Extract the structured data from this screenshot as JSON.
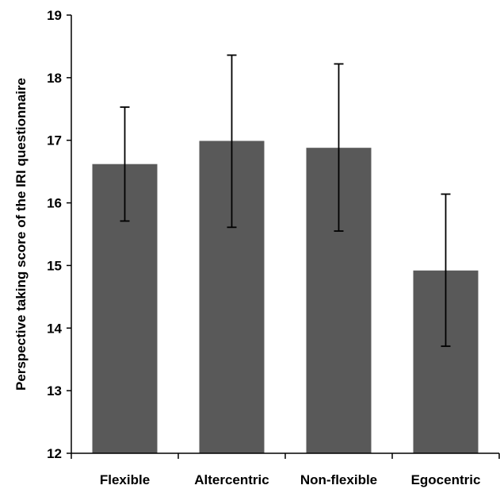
{
  "chart_data": {
    "type": "bar",
    "title": "",
    "xlabel": "",
    "ylabel": "Perspective taking score of the IRI questionnaire",
    "ylim": [
      12,
      19
    ],
    "yticks": [
      12,
      13,
      14,
      15,
      16,
      17,
      18,
      19
    ],
    "grid": false,
    "categories": [
      "Flexible",
      "Altercentric",
      "Non-flexible",
      "Egocentric"
    ],
    "values": [
      16.62,
      16.99,
      16.88,
      14.92
    ],
    "error_low": [
      15.71,
      15.61,
      15.55,
      13.71
    ],
    "error_high": [
      17.53,
      18.36,
      18.22,
      16.14
    ],
    "bar_color": "#595959"
  }
}
